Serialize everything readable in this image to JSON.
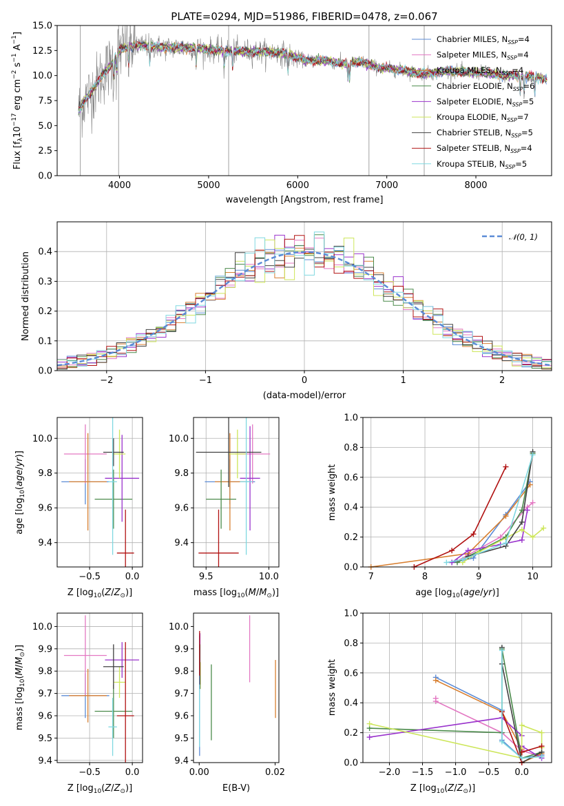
{
  "chart_data": [
    {
      "id": "spectrum",
      "type": "line",
      "title": "PLATE=0294, MJD=51986, FIBERID=0478, z=0.067",
      "xlabel": "wavelength [Angstrom, rest frame]",
      "ylabel": "Flux [f_λ 10^-17 erg cm^-2 s^-1 A^-1]",
      "xlim": [
        3300,
        8850
      ],
      "ylim": [
        0,
        15
      ],
      "xticks": [
        4000,
        5000,
        6000,
        7000,
        8000
      ],
      "yticks": [
        0.0,
        2.5,
        5.0,
        7.5,
        10.0,
        12.5,
        15.0
      ],
      "data_color": "#808080",
      "grid": false,
      "legend_position": "upper right",
      "continuum": {
        "x": [
          3550,
          3600,
          3700,
          3800,
          3900,
          4000,
          4100,
          4300,
          4500,
          4800,
          5100,
          5500,
          5800,
          6100,
          6300,
          6500,
          6700,
          6900,
          7100,
          7300,
          7500,
          7700,
          7900,
          8100,
          8300,
          8500,
          8800
        ],
        "y": [
          6.5,
          7.5,
          8.5,
          10.0,
          11.0,
          12.5,
          12.9,
          13.0,
          12.8,
          12.8,
          12.5,
          12.4,
          12.3,
          11.5,
          11.5,
          11.2,
          11.4,
          10.8,
          10.6,
          10.3,
          10.2,
          10.5,
          10.3,
          10.3,
          10.0,
          10.0,
          9.7
        ]
      },
      "series": [
        {
          "name": "Chabrier MILES, N_SSP=4",
          "label_main": "Chabrier MILES, N",
          "label_sub": "SSP",
          "label_end": "=4",
          "color": "#5b8bd6"
        },
        {
          "name": "Salpeter MILES, N_SSP=4",
          "label_main": "Salpeter MILES, N",
          "label_sub": "SSP",
          "label_end": "=4",
          "color": "#e377c2"
        },
        {
          "name": "Kroupa MILES, N_SSP=4",
          "label_main": "Kroupa MILES, N",
          "label_sub": "SSP",
          "label_end": "=4",
          "color": "#d87f30"
        },
        {
          "name": "Chabrier ELODIE, N_SSP=6",
          "label_main": "Chabrier ELODIE, N",
          "label_sub": "SSP",
          "label_end": "=6",
          "color": "#4a8a4a"
        },
        {
          "name": "Salpeter ELODIE, N_SSP=5",
          "label_main": "Salpeter ELODIE, N",
          "label_sub": "SSP",
          "label_end": "=5",
          "color": "#9932cc"
        },
        {
          "name": "Kroupa ELODIE, N_SSP=7",
          "label_main": "Kroupa ELODIE, N",
          "label_sub": "SSP",
          "label_end": "=7",
          "color": "#cde65a"
        },
        {
          "name": "Chabrier STELIB, N_SSP=5",
          "label_main": "Chabrier STELIB, N",
          "label_sub": "SSP",
          "label_end": "=5",
          "color": "#404040"
        },
        {
          "name": "Salpeter STELIB, N_SSP=4",
          "label_main": "Salpeter STELIB, N",
          "label_sub": "SSP",
          "label_end": "=4",
          "color": "#b01010"
        },
        {
          "name": "Kroupa STELIB, N_SSP=5",
          "label_main": "Kroupa STELIB, N",
          "label_sub": "SSP",
          "label_end": "=5",
          "color": "#7fd8e0"
        }
      ]
    },
    {
      "id": "residuals",
      "type": "line",
      "xlabel": "(data-model)/error",
      "ylabel": "Normed distribution",
      "xlim": [
        -2.5,
        2.5
      ],
      "ylim": [
        0,
        0.5
      ],
      "xticks": [
        -2,
        -1,
        0,
        1,
        2
      ],
      "yticks": [
        0.0,
        0.1,
        0.2,
        0.3,
        0.4
      ],
      "grid": true,
      "legend": "N(0,1)",
      "legend_position": "upper right",
      "gaussian_color": "#5b8bd6",
      "bin_edges_start": -2.5,
      "bin_width": 0.1
    },
    {
      "id": "age_vs_Z",
      "type": "scatter",
      "xlabel": "Z [log10(Z/Z⊙)]",
      "ylabel": "age  [log10(age/yr)]",
      "xlim": [
        -0.88,
        0.12
      ],
      "ylim": [
        9.26,
        10.12
      ],
      "xticks": [
        -0.5,
        0.0
      ],
      "yticks": [
        9.4,
        9.6,
        9.8,
        10.0
      ],
      "grid": true,
      "points": [
        {
          "x": -0.55,
          "y": 9.75,
          "xerr": 0.28,
          "yerr": 0.13,
          "color": "#5b8bd6"
        },
        {
          "x": -0.55,
          "y": 9.91,
          "xerr": 0.25,
          "yerr": 0.17,
          "color": "#e377c2"
        },
        {
          "x": -0.52,
          "y": 9.75,
          "xerr": 0.22,
          "yerr": 0.28,
          "color": "#d87f30"
        },
        {
          "x": -0.22,
          "y": 9.65,
          "xerr": 0.22,
          "yerr": 0.17,
          "color": "#4a8a4a"
        },
        {
          "x": -0.12,
          "y": 9.77,
          "xerr": 0.2,
          "yerr": 0.25,
          "color": "#9932cc"
        },
        {
          "x": -0.15,
          "y": 9.91,
          "xerr": 0.07,
          "yerr": 0.14,
          "color": "#cde65a"
        },
        {
          "x": -0.22,
          "y": 9.92,
          "xerr": 0.12,
          "yerr": 0.08,
          "color": "#404040"
        },
        {
          "x": -0.08,
          "y": 9.34,
          "xerr": 0.1,
          "yerr": 0.25,
          "color": "#b01010"
        },
        {
          "x": -0.23,
          "y": 9.75,
          "xerr": 0.05,
          "yerr": 0.42,
          "color": "#7fd8e0"
        }
      ]
    },
    {
      "id": "age_vs_mass",
      "type": "scatter",
      "xlabel": "mass [log10(M/M⊙)]",
      "ylabel": "",
      "xlim": [
        9.4,
        10.08
      ],
      "ylim": [
        9.26,
        10.12
      ],
      "xticks": [
        9.5,
        10.0
      ],
      "yticks": [
        9.4,
        9.6,
        9.8,
        10.0
      ],
      "grid": true,
      "points": [
        {
          "x": 9.69,
          "y": 9.75,
          "xerr": 0.2,
          "yerr": 0.13,
          "color": "#5b8bd6"
        },
        {
          "x": 9.87,
          "y": 9.91,
          "xerr": 0.14,
          "yerr": 0.17,
          "color": "#e377c2"
        },
        {
          "x": 9.69,
          "y": 9.75,
          "xerr": 0.12,
          "yerr": 0.28,
          "color": "#d87f30"
        },
        {
          "x": 9.62,
          "y": 9.65,
          "xerr": 0.12,
          "yerr": 0.17,
          "color": "#4a8a4a"
        },
        {
          "x": 9.85,
          "y": 9.77,
          "xerr": 0.08,
          "yerr": 0.3,
          "color": "#9932cc"
        },
        {
          "x": 9.75,
          "y": 9.91,
          "xerr": 0.07,
          "yerr": 0.14,
          "color": "#cde65a"
        },
        {
          "x": 9.68,
          "y": 9.92,
          "xerr": 0.26,
          "yerr": 0.2,
          "color": "#404040"
        },
        {
          "x": 9.6,
          "y": 9.34,
          "xerr": 0.16,
          "yerr": 0.25,
          "color": "#b01010"
        },
        {
          "x": 9.82,
          "y": 9.75,
          "xerr": 0.05,
          "yerr": 0.42,
          "color": "#7fd8e0"
        }
      ]
    },
    {
      "id": "massweight_vs_age",
      "type": "line",
      "xlabel": "age  [log10(age/yr)]",
      "ylabel": "mass weight",
      "xlim": [
        6.85,
        10.35
      ],
      "ylim": [
        0,
        1
      ],
      "xticks": [
        7,
        8,
        9,
        10
      ],
      "yticks": [
        0.0,
        0.2,
        0.4,
        0.6,
        0.8,
        1.0
      ],
      "grid": true,
      "series": [
        {
          "color": "#5b8bd6",
          "x": [
            8.5,
            8.9,
            9.5,
            9.95
          ],
          "y": [
            0.03,
            0.06,
            0.35,
            0.57
          ]
        },
        {
          "color": "#e377c2",
          "x": [
            8.6,
            8.8,
            9.4,
            9.9,
            10.0
          ],
          "y": [
            0.04,
            0.08,
            0.2,
            0.4,
            0.43
          ]
        },
        {
          "color": "#d87f30",
          "x": [
            7.0,
            8.8,
            9.5,
            9.95
          ],
          "y": [
            0.0,
            0.09,
            0.34,
            0.55
          ]
        },
        {
          "color": "#4a8a4a",
          "x": [
            8.6,
            8.8,
            9.5,
            9.8,
            10.0
          ],
          "y": [
            0.03,
            0.07,
            0.2,
            0.38,
            0.76
          ]
        },
        {
          "color": "#9932cc",
          "x": [
            8.5,
            8.8,
            9.4,
            9.8,
            9.9
          ],
          "y": [
            0.03,
            0.11,
            0.15,
            0.18,
            0.38
          ]
        },
        {
          "color": "#cde65a",
          "x": [
            8.7,
            9.0,
            9.8,
            10.0,
            10.2
          ],
          "y": [
            0.03,
            0.1,
            0.25,
            0.2,
            0.26
          ]
        },
        {
          "color": "#404040",
          "x": [
            8.8,
            9.5,
            9.8,
            10.0
          ],
          "y": [
            0.07,
            0.14,
            0.3,
            0.77
          ]
        },
        {
          "color": "#b01010",
          "x": [
            7.8,
            8.5,
            8.9,
            9.5
          ],
          "y": [
            0.0,
            0.11,
            0.22,
            0.67
          ]
        },
        {
          "color": "#7fd8e0",
          "x": [
            8.4,
            8.7,
            9.5,
            10.0
          ],
          "y": [
            0.03,
            0.05,
            0.16,
            0.75
          ]
        }
      ]
    },
    {
      "id": "mass_vs_Z",
      "type": "scatter",
      "xlabel": "Z [log10(Z/Z⊙)]",
      "ylabel": "mass [log10(M/M⊙)]",
      "xlim": [
        -0.88,
        0.12
      ],
      "ylim": [
        9.39,
        10.06
      ],
      "xticks": [
        -0.5,
        0.0
      ],
      "yticks": [
        9.4,
        9.5,
        9.6,
        9.7,
        9.8,
        9.9,
        10.0
      ],
      "grid": true,
      "points": [
        {
          "x": -0.55,
          "y": 9.69,
          "xerr": 0.28,
          "yerr": 0.1,
          "color": "#5b8bd6"
        },
        {
          "x": -0.55,
          "y": 9.87,
          "xerr": 0.25,
          "yerr": 0.18,
          "color": "#e377c2"
        },
        {
          "x": -0.52,
          "y": 9.69,
          "xerr": 0.22,
          "yerr": 0.12,
          "color": "#d87f30"
        },
        {
          "x": -0.22,
          "y": 9.62,
          "xerr": 0.22,
          "yerr": 0.12,
          "color": "#4a8a4a"
        },
        {
          "x": -0.12,
          "y": 9.85,
          "xerr": 0.2,
          "yerr": 0.08,
          "color": "#9932cc"
        },
        {
          "x": -0.15,
          "y": 9.75,
          "xerr": 0.07,
          "yerr": 0.07,
          "color": "#cde65a"
        },
        {
          "x": -0.22,
          "y": 9.82,
          "xerr": 0.12,
          "yerr": 0.1,
          "color": "#404040"
        },
        {
          "x": -0.08,
          "y": 9.6,
          "xerr": 0.1,
          "yerr": 0.33,
          "color": "#b01010"
        },
        {
          "x": -0.23,
          "y": 9.55,
          "xerr": 0.05,
          "yerr": 0.13,
          "color": "#7fd8e0"
        }
      ]
    },
    {
      "id": "mass_vs_ebv",
      "type": "scatter",
      "xlabel": "E(B-V)",
      "ylabel": "",
      "xlim": [
        -0.0015,
        0.021
      ],
      "ylim": [
        9.39,
        10.06
      ],
      "xticks": [
        0.0,
        0.02
      ],
      "yticks": [
        9.4,
        9.5,
        9.6,
        9.7,
        9.8,
        9.9,
        10.0
      ],
      "grid": false,
      "points": [
        {
          "x": 0.0001,
          "y": 9.69,
          "xerr": 0,
          "yerr": 0.27,
          "color": "#5b8bd6"
        },
        {
          "x": 0.0133,
          "y": 9.9,
          "xerr": 0,
          "yerr": 0.15,
          "color": "#e377c2"
        },
        {
          "x": 0.0201,
          "y": 9.72,
          "xerr": 0,
          "yerr": 0.13,
          "color": "#d87f30"
        },
        {
          "x": 0.0032,
          "y": 9.66,
          "xerr": 0,
          "yerr": 0.17,
          "color": "#4a8a4a"
        },
        {
          "x": 0.0002,
          "y": 9.9,
          "xerr": 0,
          "yerr": 0.07,
          "color": "#9932cc"
        },
        {
          "x": 0.0003,
          "y": 9.78,
          "xerr": 0,
          "yerr": 0.06,
          "color": "#cde65a"
        },
        {
          "x": 0.0002,
          "y": 9.82,
          "xerr": 0,
          "yerr": 0.1,
          "color": "#404040"
        },
        {
          "x": 0.0001,
          "y": 9.88,
          "xerr": 0,
          "yerr": 0.1,
          "color": "#b01010"
        },
        {
          "x": 0.0001,
          "y": 9.6,
          "xerr": 0,
          "yerr": 0.14,
          "color": "#7fd8e0"
        }
      ]
    },
    {
      "id": "massweight_vs_Z",
      "type": "line",
      "xlabel": "Z [log10(Z/Z⊙)]",
      "ylabel": "mass weight",
      "xlim": [
        -2.4,
        0.45
      ],
      "ylim": [
        0,
        1
      ],
      "xticks": [
        -2.0,
        -1.5,
        -1.0,
        -0.5,
        0.0
      ],
      "yticks": [
        0.0,
        0.2,
        0.4,
        0.6,
        0.8,
        1.0
      ],
      "grid": true,
      "series": [
        {
          "color": "#5b8bd6",
          "x": [
            -1.3,
            -0.3,
            -0.3,
            0.0,
            0.3
          ],
          "y": [
            0.57,
            0.35,
            0.15,
            0.03,
            0.05
          ]
        },
        {
          "color": "#e377c2",
          "x": [
            -1.3,
            -1.3,
            -0.3,
            0.0,
            0.3
          ],
          "y": [
            0.43,
            0.41,
            0.2,
            0.08,
            0.04
          ]
        },
        {
          "color": "#d87f30",
          "x": [
            -1.3,
            -0.3,
            0.0,
            0.0,
            0.3
          ],
          "y": [
            0.55,
            0.34,
            0.09,
            0.0,
            0.06
          ]
        },
        {
          "color": "#4a8a4a",
          "x": [
            -2.3,
            -0.3,
            -0.3,
            0.0,
            0.3
          ],
          "y": [
            0.23,
            0.2,
            0.76,
            0.03,
            0.07
          ]
        },
        {
          "color": "#9932cc",
          "x": [
            -2.3,
            -0.3,
            0.0,
            0.0,
            0.3
          ],
          "y": [
            0.17,
            0.3,
            0.18,
            0.11,
            0.03
          ]
        },
        {
          "color": "#cde65a",
          "x": [
            -2.3,
            0.0,
            0.0,
            0.3,
            0.3
          ],
          "y": [
            0.26,
            0.03,
            0.25,
            0.2,
            0.1
          ]
        },
        {
          "color": "#404040",
          "x": [
            -0.3,
            -0.3,
            0.0,
            0.3
          ],
          "y": [
            0.77,
            0.66,
            0.0,
            0.07
          ]
        },
        {
          "color": "#b01010",
          "x": [
            -0.3,
            0.0,
            0.0,
            0.3
          ],
          "y": [
            0.34,
            0.0,
            0.07,
            0.11
          ]
        },
        {
          "color": "#7fd8e0",
          "x": [
            -0.3,
            -0.3,
            0.0,
            0.3
          ],
          "y": [
            0.75,
            0.14,
            0.03,
            0.04
          ]
        }
      ]
    }
  ]
}
